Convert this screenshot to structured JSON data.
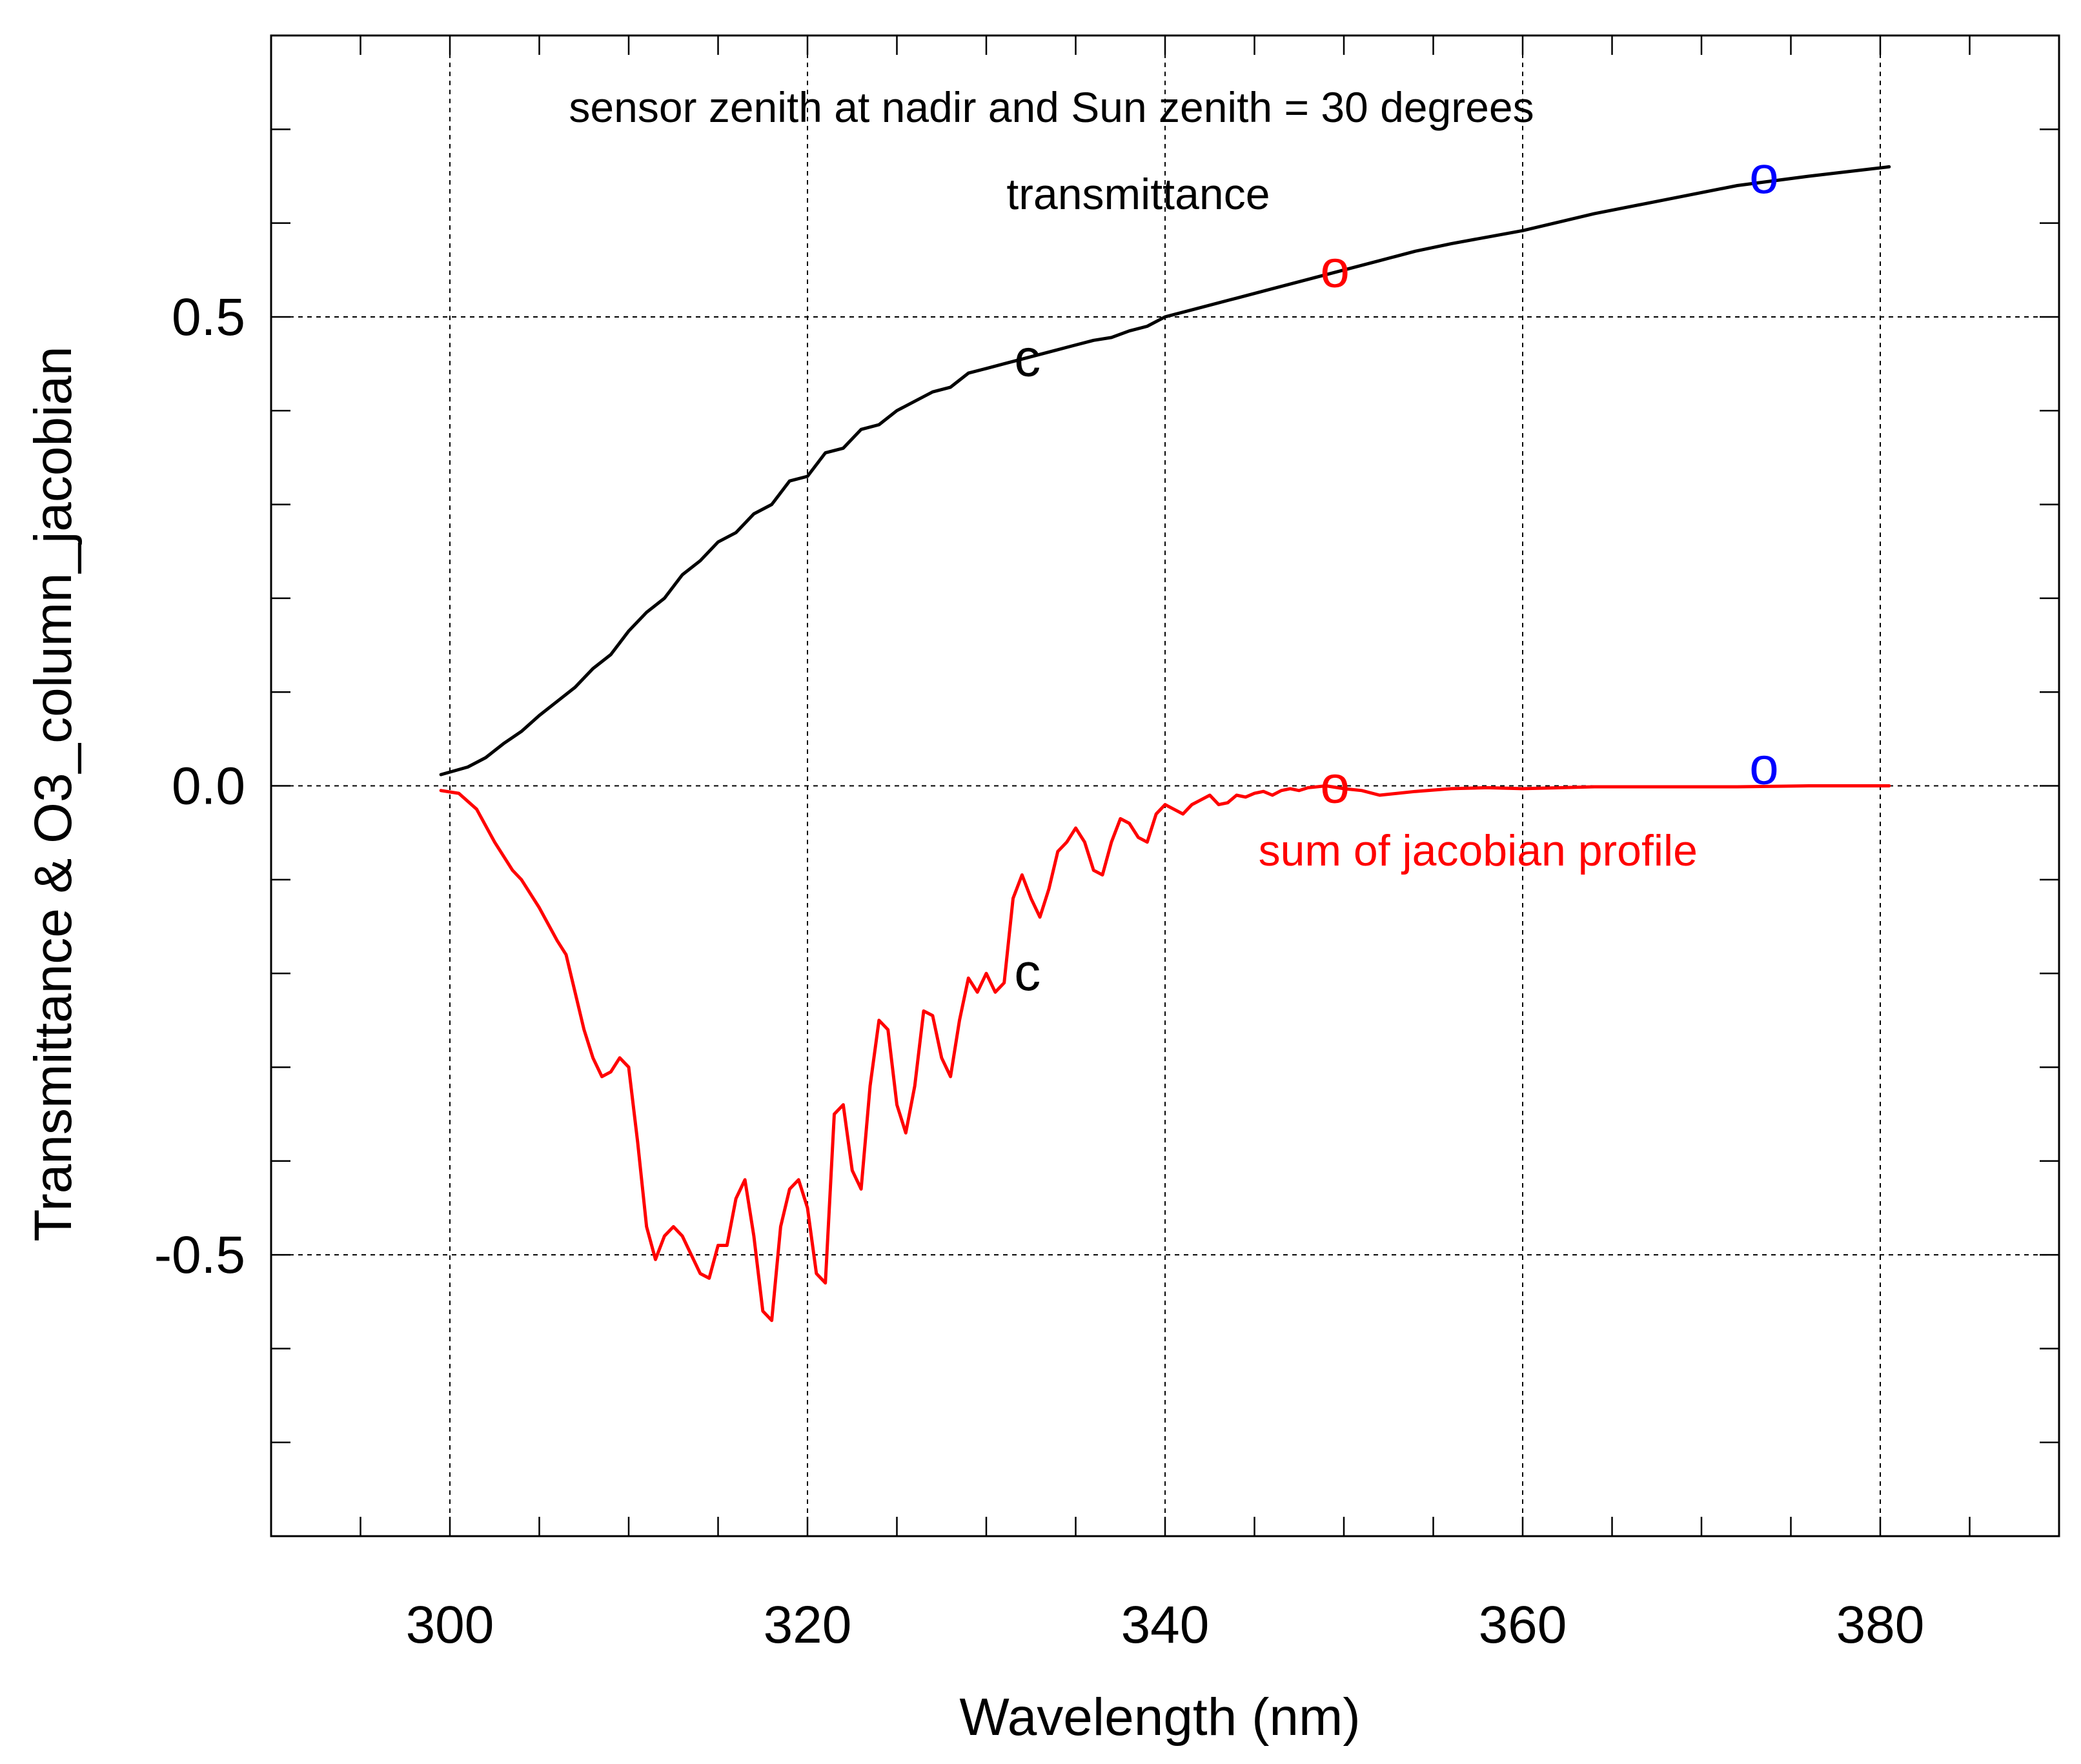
{
  "chart_data": {
    "type": "line",
    "title": "sensor zenith at nadir and Sun zenith = 30 degrees",
    "xlabel": "Wavelength (nm)",
    "ylabel": "Transmittance & O3_column_jacobian",
    "xlim": [
      290,
      390
    ],
    "ylim": [
      -0.8,
      0.8
    ],
    "xticks": [
      300,
      320,
      340,
      360,
      380
    ],
    "xtick_labels": [
      "300",
      "320",
      "340",
      "360",
      "380"
    ],
    "yticks": [
      -0.5,
      0.0,
      0.5
    ],
    "ytick_labels": [
      "-0.5",
      "0.0",
      "0.5"
    ],
    "grid": true,
    "series": [
      {
        "name": "transmittance",
        "label": "transmittance",
        "color": "#000000",
        "x": [
          299.5,
          301,
          302,
          303,
          304,
          305,
          306,
          307,
          308,
          309,
          310,
          311,
          312,
          313,
          314,
          315,
          316,
          317,
          318,
          319,
          320,
          321,
          322,
          323,
          324,
          325,
          326,
          327,
          328,
          329,
          330,
          331,
          332,
          333,
          334,
          335,
          336,
          337,
          338,
          339,
          340,
          342,
          344,
          346,
          348,
          350,
          352,
          354,
          356,
          358,
          360,
          364,
          368,
          372,
          376,
          380.5
        ],
        "values": [
          0.012,
          0.02,
          0.03,
          0.045,
          0.058,
          0.075,
          0.09,
          0.105,
          0.125,
          0.14,
          0.165,
          0.185,
          0.2,
          0.225,
          0.24,
          0.26,
          0.27,
          0.29,
          0.3,
          0.325,
          0.33,
          0.355,
          0.36,
          0.38,
          0.385,
          0.4,
          0.41,
          0.42,
          0.425,
          0.44,
          0.445,
          0.45,
          0.455,
          0.46,
          0.465,
          0.47,
          0.475,
          0.478,
          0.485,
          0.49,
          0.5,
          0.51,
          0.52,
          0.53,
          0.54,
          0.55,
          0.56,
          0.57,
          0.578,
          0.585,
          0.592,
          0.61,
          0.625,
          0.64,
          0.65,
          0.66
        ]
      },
      {
        "name": "sum of jacobian profile",
        "label": "sum of jacobian profile",
        "color": "#ff0000",
        "x": [
          299.5,
          300.5,
          301.5,
          302.5,
          303.5,
          304,
          305,
          306,
          306.5,
          307,
          307.5,
          308,
          308.5,
          309,
          309.5,
          310,
          310.5,
          311,
          311.5,
          312,
          312.5,
          313,
          313.5,
          314,
          314.5,
          315,
          315.5,
          316,
          316.5,
          317,
          317.5,
          318,
          318.5,
          319,
          319.5,
          320,
          320.5,
          321,
          321.5,
          322,
          322.5,
          323,
          323.5,
          324,
          324.5,
          325,
          325.5,
          326,
          326.5,
          327,
          327.5,
          328,
          328.5,
          329,
          329.5,
          330,
          330.5,
          331,
          331.5,
          332,
          332.5,
          333,
          333.5,
          334,
          334.5,
          335,
          335.5,
          336,
          336.5,
          337,
          337.5,
          338,
          338.5,
          339,
          339.5,
          340,
          340.5,
          341,
          341.5,
          342,
          342.5,
          343,
          343.5,
          344,
          344.5,
          345,
          345.5,
          346,
          346.5,
          347,
          347.5,
          348,
          349,
          350,
          351,
          352,
          354,
          356,
          358,
          360,
          364,
          368,
          372,
          376,
          380.5
        ],
        "values": [
          -0.005,
          -0.008,
          -0.025,
          -0.06,
          -0.09,
          -0.1,
          -0.13,
          -0.165,
          -0.18,
          -0.22,
          -0.26,
          -0.29,
          -0.31,
          -0.305,
          -0.29,
          -0.3,
          -0.38,
          -0.47,
          -0.505,
          -0.48,
          -0.47,
          -0.48,
          -0.5,
          -0.52,
          -0.525,
          -0.49,
          -0.49,
          -0.44,
          -0.42,
          -0.48,
          -0.56,
          -0.57,
          -0.47,
          -0.43,
          -0.42,
          -0.45,
          -0.52,
          -0.53,
          -0.35,
          -0.34,
          -0.41,
          -0.43,
          -0.32,
          -0.25,
          -0.26,
          -0.34,
          -0.37,
          -0.32,
          -0.24,
          -0.245,
          -0.29,
          -0.31,
          -0.25,
          -0.205,
          -0.22,
          -0.2,
          -0.22,
          -0.21,
          -0.12,
          -0.095,
          -0.12,
          -0.14,
          -0.11,
          -0.07,
          -0.06,
          -0.045,
          -0.06,
          -0.09,
          -0.095,
          -0.06,
          -0.035,
          -0.04,
          -0.055,
          -0.06,
          -0.03,
          -0.02,
          -0.025,
          -0.03,
          -0.02,
          -0.015,
          -0.01,
          -0.02,
          -0.018,
          -0.01,
          -0.012,
          -0.008,
          -0.006,
          -0.01,
          -0.005,
          -0.003,
          -0.005,
          -0.002,
          0.0,
          -0.003,
          -0.005,
          -0.01,
          -0.006,
          -0.003,
          -0.002,
          -0.003,
          -0.001,
          -0.001,
          -0.001,
          0.0,
          0.0
        ]
      }
    ],
    "annotations": [
      {
        "text": "transmittance",
        "x": 338.5,
        "y": 0.615,
        "color": "#000000"
      },
      {
        "text": "sum of jacobian profile",
        "x": 357.5,
        "y": -0.085,
        "color": "#ff0000"
      },
      {
        "text": "c",
        "x": 332.3,
        "y": 0.455,
        "color": "#000000"
      },
      {
        "text": "c",
        "x": 332.3,
        "y": -0.2,
        "color": "#000000"
      },
      {
        "text": "o",
        "x": 349.5,
        "y": 0.55,
        "color": "#ff0000"
      },
      {
        "text": "o",
        "x": 349.5,
        "y": 0.0,
        "color": "#ff0000"
      },
      {
        "text": "o",
        "x": 373.5,
        "y": 0.65,
        "color": "#0000ff"
      },
      {
        "text": "o",
        "x": 373.5,
        "y": 0.02,
        "color": "#0000ff"
      }
    ]
  }
}
